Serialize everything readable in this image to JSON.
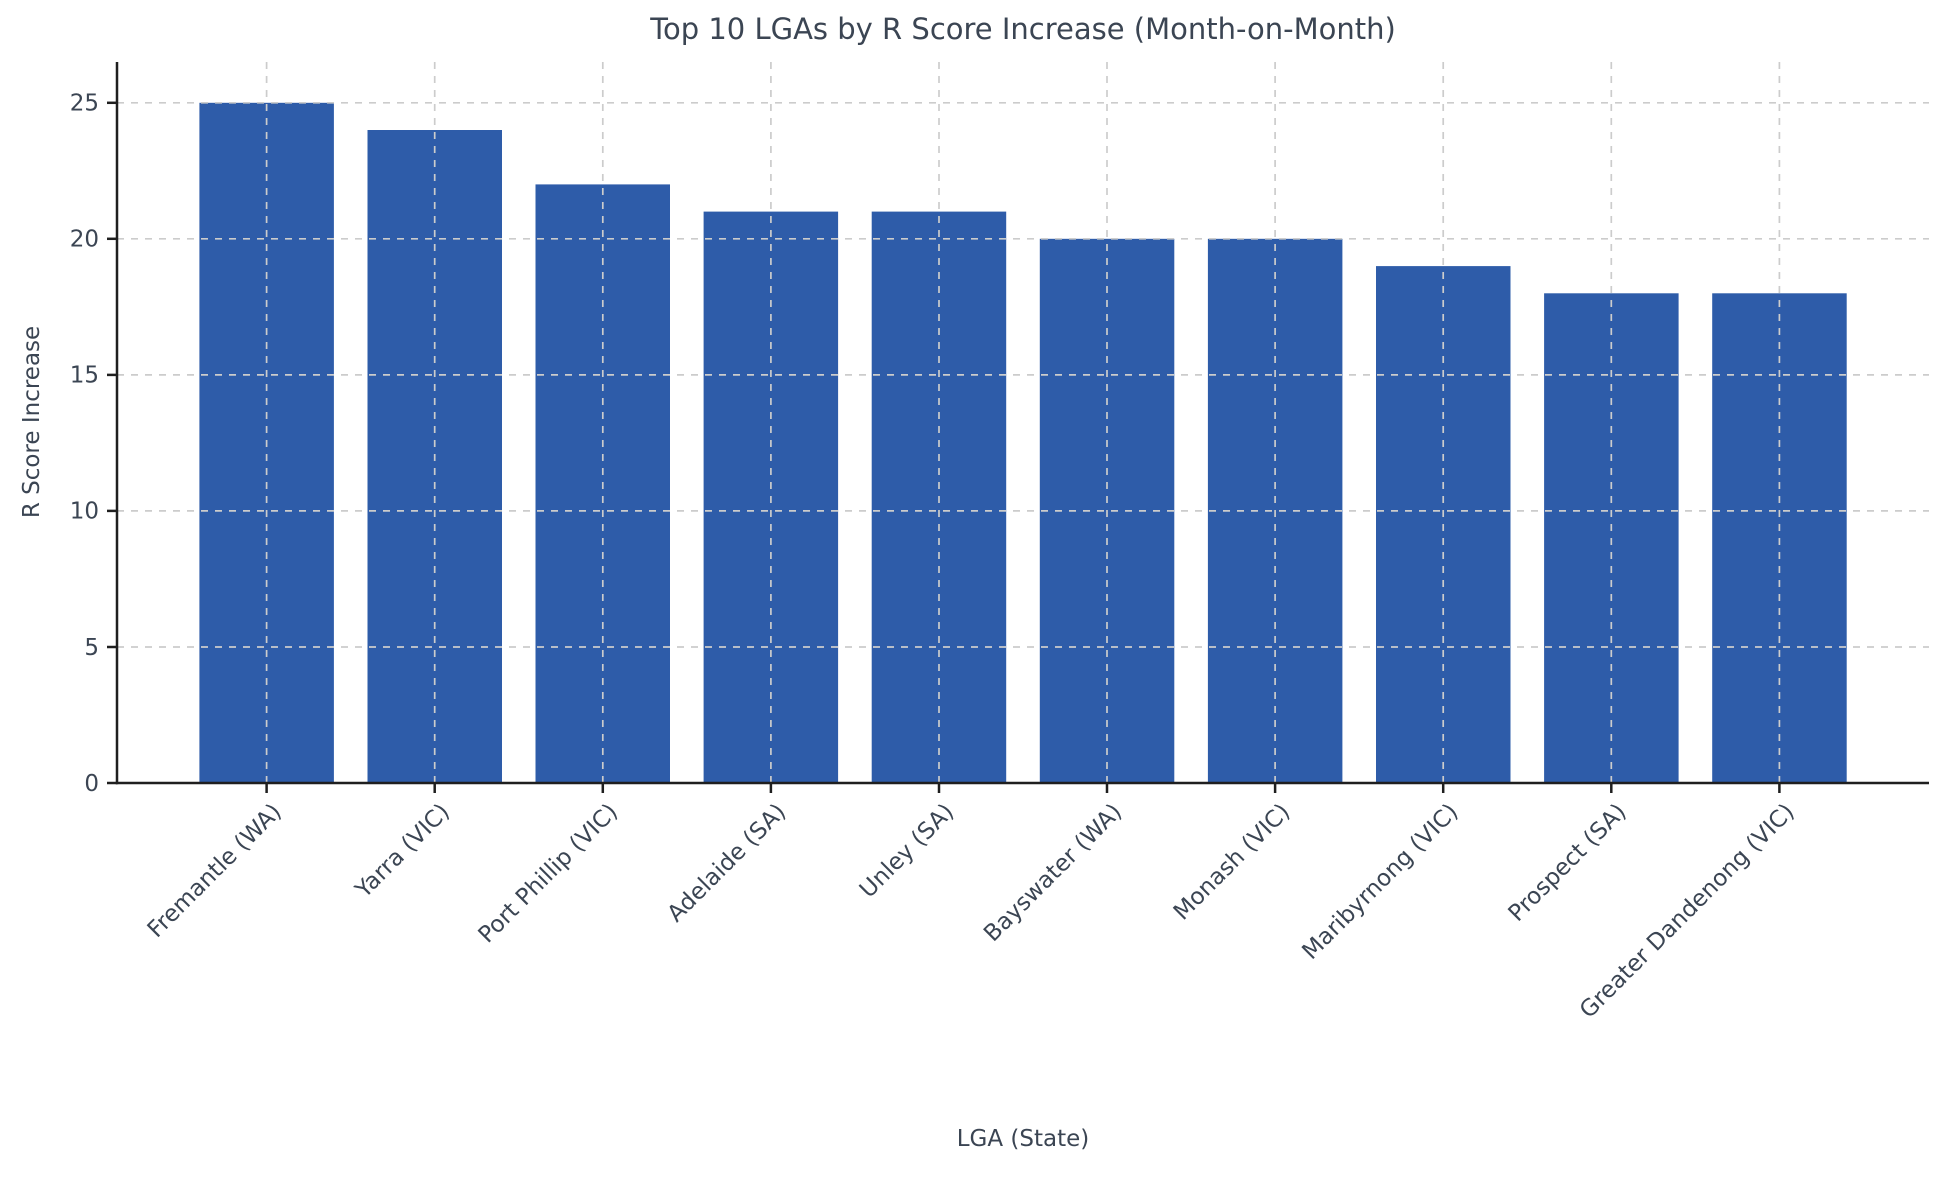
{
  "chart_data": {
    "type": "bar",
    "title": "Top 10 LGAs by R Score Increase (Month-on-Month)",
    "xlabel": "LGA (State)",
    "ylabel": "R Score Increase",
    "categories": [
      "Fremantle (WA)",
      "Yarra (VIC)",
      "Port Phillip (VIC)",
      "Adelaide (SA)",
      "Unley (SA)",
      "Bayswater (WA)",
      "Monash (VIC)",
      "Maribyrnong (VIC)",
      "Prospect (SA)",
      "Greater Dandenong (VIC)"
    ],
    "values": [
      25,
      24,
      22,
      21,
      21,
      20,
      20,
      19,
      18,
      18
    ],
    "yticks": [
      0,
      5,
      10,
      15,
      20,
      25
    ],
    "ylim": [
      0,
      26.5
    ],
    "grid": "dashed, drawn over bars, horizontal and vertical",
    "legend": "none",
    "colors": {
      "bar": "#2e5ca9",
      "grid": "#cccccc",
      "spine": "#1f1f1f",
      "text": "#3b4553"
    }
  }
}
